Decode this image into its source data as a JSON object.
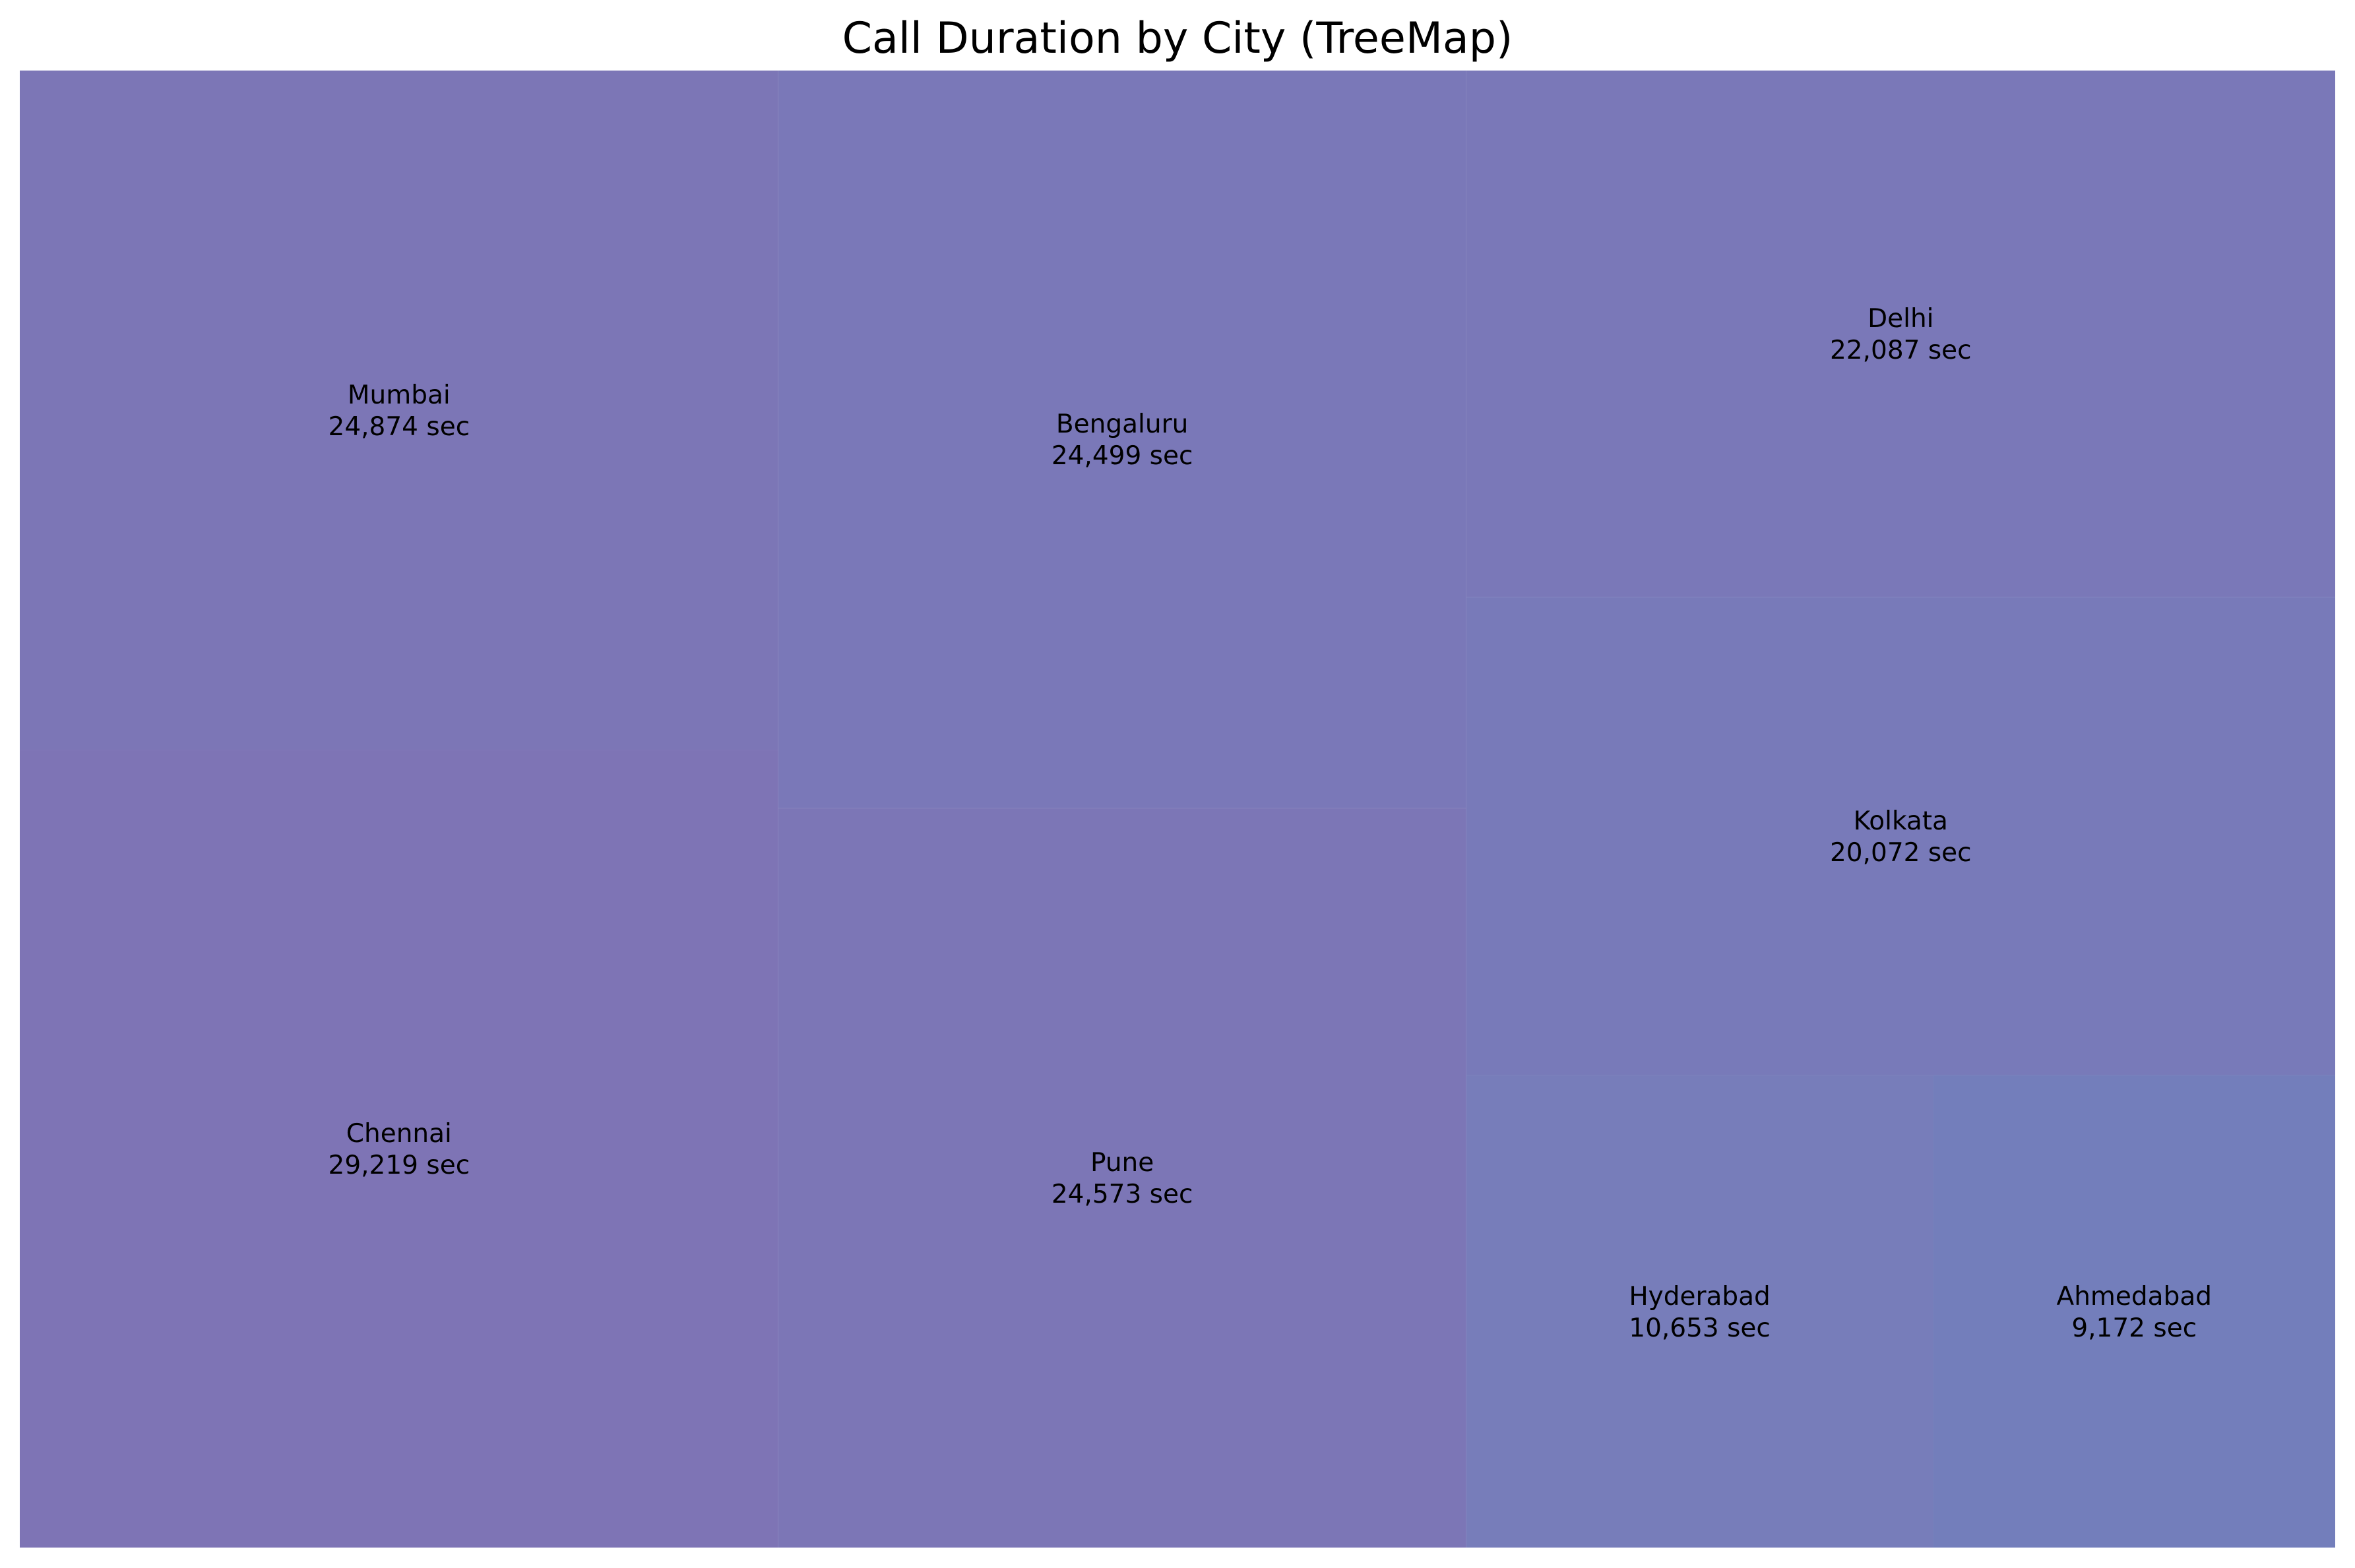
{
  "chart_data": {
    "type": "treemap",
    "title": "Call Duration by City (TreeMap)",
    "unit": "sec",
    "items": [
      {
        "label": "Chennai",
        "value": 29219,
        "value_text": "29,219 sec",
        "color": "#7e74b5"
      },
      {
        "label": "Mumbai",
        "value": 24874,
        "value_text": "24,874 sec",
        "color": "#7c76b6"
      },
      {
        "label": "Pune",
        "value": 24573,
        "value_text": "24,573 sec",
        "color": "#7c76b6"
      },
      {
        "label": "Bengaluru",
        "value": 24499,
        "value_text": "24,499 sec",
        "color": "#7a78b8"
      },
      {
        "label": "Delhi",
        "value": 22087,
        "value_text": "22,087 sec",
        "color": "#7a78b8"
      },
      {
        "label": "Kolkata",
        "value": 20072,
        "value_text": "20,072 sec",
        "color": "#787ab9"
      },
      {
        "label": "Hyderabad",
        "value": 10653,
        "value_text": "10,653 sec",
        "color": "#777dba"
      },
      {
        "label": "Ahmedabad",
        "value": 9172,
        "value_text": "9,172 sec",
        "color": "#737ebb"
      }
    ]
  }
}
